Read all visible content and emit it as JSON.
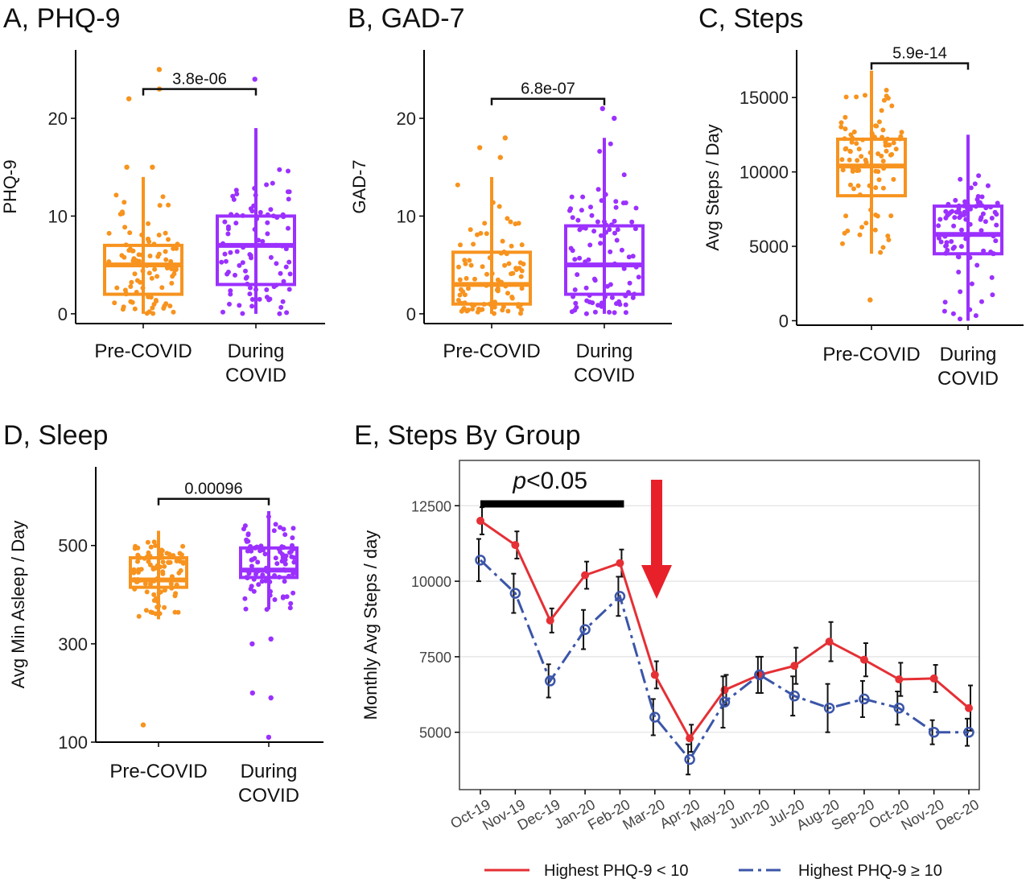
{
  "colors": {
    "pre": "#f7931e",
    "during": "#9b30ff",
    "low": "#e53035",
    "high": "#3b55a8",
    "arrow": "#e8202a"
  },
  "chart_data": [
    {
      "id": "A",
      "type": "box",
      "title": "A, PHQ-9",
      "ylabel": "PHQ-9",
      "ylim": [
        -1,
        27
      ],
      "yticks": [
        0,
        10,
        20
      ],
      "categories": [
        "Pre-COVID",
        "During COVID"
      ],
      "category_lines": [
        [
          "Pre-COVID"
        ],
        [
          "During",
          "COVID"
        ]
      ],
      "boxes": [
        {
          "q1": 2,
          "median": 5,
          "q3": 7,
          "whisker_low": 0,
          "whisker_high": 14,
          "outliers": [
            25,
            23,
            22,
            15,
            15
          ]
        },
        {
          "q1": 3,
          "median": 7,
          "q3": 10,
          "whisker_low": 0,
          "whisker_high": 19,
          "outliers": [
            24
          ]
        }
      ],
      "comparison": {
        "pvalue": "3.8e-06",
        "y": 23
      }
    },
    {
      "id": "B",
      "type": "box",
      "title": "B, GAD-7",
      "ylabel": "GAD-7",
      "ylim": [
        -1,
        27
      ],
      "yticks": [
        0,
        10,
        20
      ],
      "categories": [
        "Pre-COVID",
        "During COVID"
      ],
      "category_lines": [
        [
          "Pre-COVID"
        ],
        [
          "During",
          "COVID"
        ]
      ],
      "boxes": [
        {
          "q1": 1,
          "median": 3,
          "q3": 6.3,
          "whisker_low": 0,
          "whisker_high": 14,
          "outliers": [
            18,
            17,
            16
          ]
        },
        {
          "q1": 2,
          "median": 5,
          "q3": 9,
          "whisker_low": 0,
          "whisker_high": 18,
          "outliers": [
            21,
            20
          ]
        }
      ],
      "comparison": {
        "pvalue": "6.8e-07",
        "y": 22
      }
    },
    {
      "id": "C",
      "type": "box",
      "title": "C, Steps",
      "ylabel": "Avg Steps / Day",
      "ylim": [
        -300,
        18200
      ],
      "yticks": [
        0,
        5000,
        10000,
        15000
      ],
      "categories": [
        "Pre-COVID",
        "During COVID"
      ],
      "category_lines": [
        [
          "Pre-COVID"
        ],
        [
          "During",
          "COVID"
        ]
      ],
      "boxes": [
        {
          "q1": 8400,
          "median": 10400,
          "q3": 12200,
          "whisker_low": 4500,
          "whisker_high": 16800,
          "outliers": [
            1400
          ]
        },
        {
          "q1": 4500,
          "median": 5800,
          "q3": 7700,
          "whisker_low": 0,
          "whisker_high": 12500,
          "outliers": []
        }
      ],
      "comparison": {
        "pvalue": "5.9e-14",
        "y": 17300
      }
    },
    {
      "id": "D",
      "type": "box",
      "title": "D, Sleep",
      "ylabel": "Avg Min Asleep / Day",
      "ylim": [
        100,
        660
      ],
      "yticks": [
        100,
        300,
        500
      ],
      "categories": [
        "Pre-COVID",
        "During COVID"
      ],
      "category_lines": [
        [
          "Pre-COVID"
        ],
        [
          "During",
          "COVID"
        ]
      ],
      "boxes": [
        {
          "q1": 415,
          "median": 430,
          "q3": 475,
          "whisker_low": 350,
          "whisker_high": 530,
          "outliers": [
            135
          ]
        },
        {
          "q1": 435,
          "median": 450,
          "q3": 495,
          "whisker_low": 370,
          "whisker_high": 570,
          "outliers": [
            310,
            300,
            200,
            190,
            110
          ]
        }
      ],
      "comparison": {
        "pvalue": "0.00096",
        "y": 595
      }
    },
    {
      "id": "E",
      "type": "line",
      "title": "E, Steps By Group",
      "ylabel": "Monthly Avg Steps / day",
      "ylim": [
        3100,
        14000
      ],
      "yticks": [
        5000,
        7500,
        10000,
        12500
      ],
      "x": [
        "Oct-19",
        "Nov-19",
        "Dec-19",
        "Jan-20",
        "Feb-20",
        "Mar-20",
        "Apr-20",
        "May-20",
        "Jun-20",
        "Jul-20",
        "Aug-20",
        "Sep-20",
        "Oct-20",
        "Nov-20",
        "Dec-20"
      ],
      "series": [
        {
          "name": "Highest PHQ-9 < 10",
          "values": [
            12000,
            11200,
            8700,
            10200,
            10600,
            6900,
            4800,
            6400,
            6900,
            7200,
            8000,
            7400,
            6750,
            6780,
            5800
          ],
          "err": [
            450,
            450,
            400,
            450,
            450,
            450,
            450,
            500,
            600,
            600,
            650,
            550,
            550,
            450,
            750
          ]
        },
        {
          "name": "Highest PHQ-9 ≥ 10",
          "values": [
            10700,
            9600,
            6700,
            8400,
            9500,
            5500,
            4100,
            6000,
            6900,
            6200,
            5800,
            6100,
            5800,
            5000,
            5000
          ],
          "err": [
            700,
            650,
            550,
            650,
            650,
            600,
            500,
            850,
            600,
            650,
            800,
            600,
            550,
            400,
            450
          ]
        }
      ],
      "significance": {
        "label_italic": "p",
        "label_rest": "<0.05",
        "from": "Oct-19",
        "to": "Feb-20"
      }
    }
  ]
}
